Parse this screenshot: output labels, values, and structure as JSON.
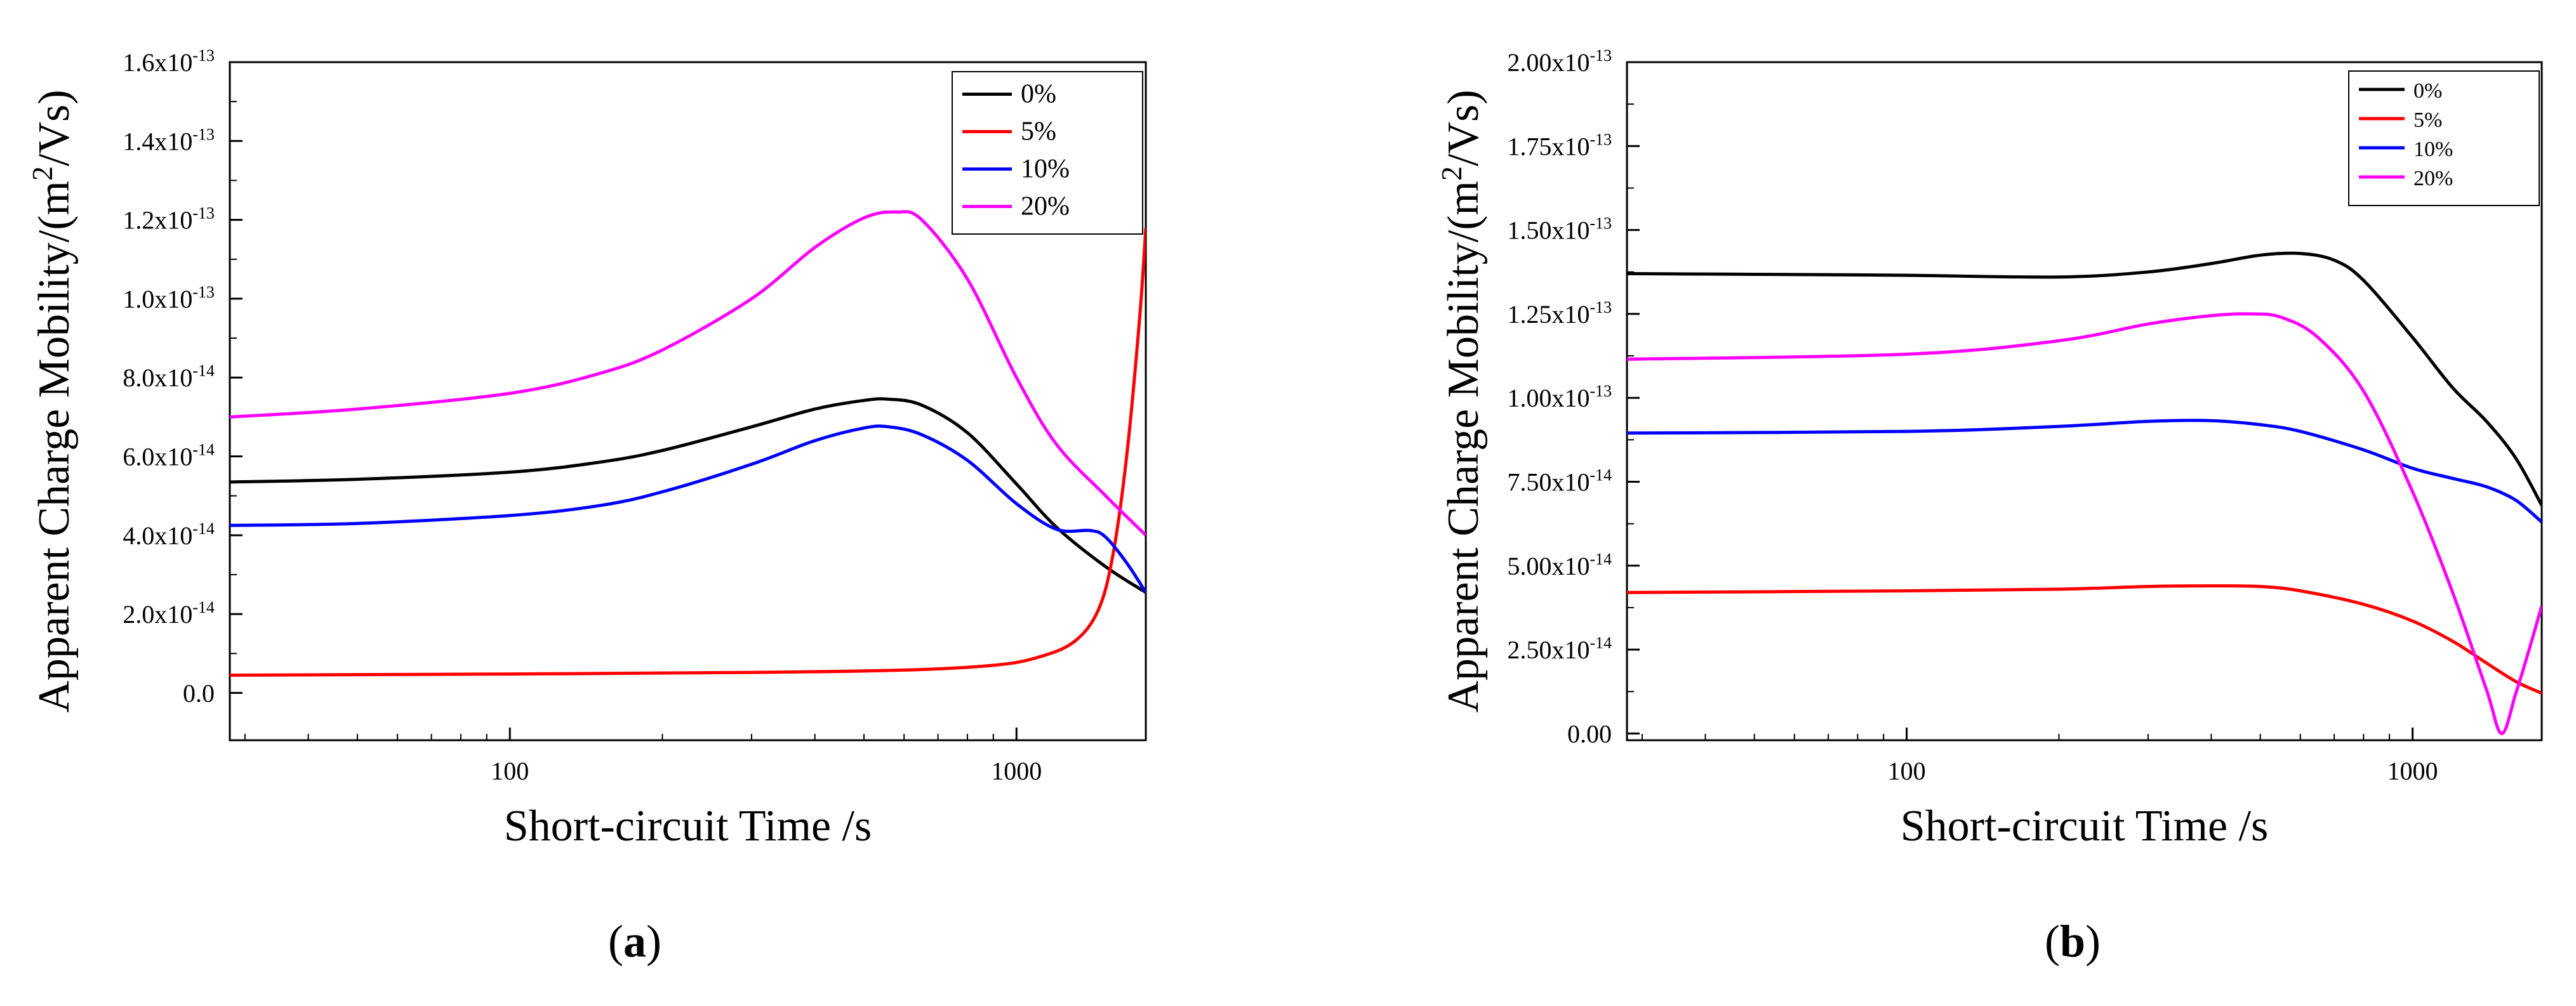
{
  "chart_data": [
    {
      "panel_id": "a",
      "type": "line",
      "xscale": "log",
      "xlim": [
        28,
        1800
      ],
      "ylim": [
        -1.2e-14,
        1.6e-13
      ],
      "xlabel": "Short-circuit Time /s",
      "ylabel": "Apparent Charge Mobility/(m2/Vs)",
      "ylabel_parts": {
        "main": "Apparent Charge Mobility/(m",
        "sup": "2",
        "tail": "/Vs)"
      },
      "panel_label": {
        "open": "(",
        "letter": "a",
        "close": ")"
      },
      "x_ticks": [
        {
          "value": 100,
          "label": "100"
        },
        {
          "value": 1000,
          "label": "1000"
        }
      ],
      "y_ticks": [
        {
          "value": 0,
          "mant": "0.0",
          "exp": ""
        },
        {
          "value": 2e-14,
          "mant": "2.0x10",
          "exp": "-14"
        },
        {
          "value": 4e-14,
          "mant": "4.0x10",
          "exp": "-14"
        },
        {
          "value": 6e-14,
          "mant": "6.0x10",
          "exp": "-14"
        },
        {
          "value": 8e-14,
          "mant": "8.0x10",
          "exp": "-14"
        },
        {
          "value": 1e-13,
          "mant": "1.0x10",
          "exp": "-13"
        },
        {
          "value": 1.2e-13,
          "mant": "1.2x10",
          "exp": "-13"
        },
        {
          "value": 1.4e-13,
          "mant": "1.4x10",
          "exp": "-13"
        },
        {
          "value": 1.6e-13,
          "mant": "1.6x10",
          "exp": "-13"
        }
      ],
      "legend_position": "top-right",
      "series": [
        {
          "name": "0%",
          "color": "#000000",
          "x": [
            28,
            50,
            100,
            150,
            200,
            300,
            400,
            500,
            560,
            650,
            800,
            1000,
            1200,
            1500,
            1800
          ],
          "y": [
            5.35e-14,
            5.42e-14,
            5.6e-14,
            5.85e-14,
            6.15e-14,
            6.75e-14,
            7.2e-14,
            7.42e-14,
            7.45e-14,
            7.3e-14,
            6.6e-14,
            5.3e-14,
            4.2e-14,
            3.2e-14,
            2.55e-14
          ]
        },
        {
          "name": "5%",
          "color": "#ff0000",
          "x": [
            28,
            100,
            300,
            600,
            900,
            1100,
            1300,
            1450,
            1550,
            1650,
            1750,
            1800
          ],
          "y": [
            4.5e-15,
            4.8e-15,
            5.2e-15,
            5.8e-15,
            7e-15,
            9e-15,
            1.3e-14,
            2.1e-14,
            3.5e-14,
            6e-14,
            9.5e-14,
            1.18e-13
          ]
        },
        {
          "name": "10%",
          "color": "#0000ff",
          "x": [
            28,
            50,
            100,
            150,
            200,
            300,
            400,
            500,
            560,
            650,
            800,
            1000,
            1200,
            1400,
            1500,
            1650,
            1800
          ],
          "y": [
            4.25e-14,
            4.3e-14,
            4.5e-14,
            4.75e-14,
            5.1e-14,
            5.8e-14,
            6.4e-14,
            6.72e-14,
            6.75e-14,
            6.55e-14,
            5.9e-14,
            4.8e-14,
            4.15e-14,
            4.12e-14,
            3.95e-14,
            3.3e-14,
            2.55e-14
          ]
        },
        {
          "name": "20%",
          "color": "#ff00ff",
          "x": [
            28,
            50,
            100,
            150,
            200,
            300,
            400,
            500,
            580,
            650,
            800,
            1000,
            1200,
            1500,
            1800
          ],
          "y": [
            7e-14,
            7.2e-14,
            7.6e-14,
            8.1e-14,
            8.7e-14,
            1e-13,
            1.13e-13,
            1.205e-13,
            1.22e-13,
            1.2e-13,
            1.05e-13,
            8e-14,
            6.3e-14,
            5e-14,
            4e-14
          ]
        }
      ]
    },
    {
      "panel_id": "b",
      "type": "line",
      "xscale": "log",
      "xlim": [
        28,
        1800
      ],
      "ylim": [
        -2e-15,
        2e-13
      ],
      "xlabel": "Short-circuit Time /s",
      "ylabel": "Apparent Charge Mobility/(m2/Vs)",
      "ylabel_parts": {
        "main": "Apparent Charge Mobility/(m",
        "sup": "2",
        "tail": "/Vs)"
      },
      "panel_label": {
        "open": "(",
        "letter": "b",
        "close": ")"
      },
      "x_ticks": [
        {
          "value": 100,
          "label": "100"
        },
        {
          "value": 1000,
          "label": "1000"
        }
      ],
      "y_ticks": [
        {
          "value": 0,
          "mant": "0.00",
          "exp": ""
        },
        {
          "value": 2.5e-14,
          "mant": "2.50x10",
          "exp": "-14"
        },
        {
          "value": 5e-14,
          "mant": "5.00x10",
          "exp": "-14"
        },
        {
          "value": 7.5e-14,
          "mant": "7.50x10",
          "exp": "-14"
        },
        {
          "value": 1e-13,
          "mant": "1.00x10",
          "exp": "-13"
        },
        {
          "value": 1.25e-13,
          "mant": "1.25x10",
          "exp": "-13"
        },
        {
          "value": 1.5e-13,
          "mant": "1.50x10",
          "exp": "-13"
        },
        {
          "value": 1.75e-13,
          "mant": "1.75x10",
          "exp": "-13"
        },
        {
          "value": 2e-13,
          "mant": "2.00x10",
          "exp": "-13"
        }
      ],
      "legend_position": "top-right",
      "series": [
        {
          "name": "0%",
          "color": "#000000",
          "x": [
            28,
            50,
            100,
            200,
            300,
            400,
            500,
            600,
            700,
            800,
            1000,
            1200,
            1400,
            1600,
            1800
          ],
          "y": [
            1.37e-13,
            1.368e-13,
            1.365e-13,
            1.36e-13,
            1.375e-13,
            1.4e-13,
            1.425e-13,
            1.43e-13,
            1.41e-13,
            1.35e-13,
            1.18e-13,
            1.03e-13,
            9.3e-14,
            8.2e-14,
            6.8e-14
          ]
        },
        {
          "name": "5%",
          "color": "#ff0000",
          "x": [
            28,
            100,
            200,
            300,
            400,
            500,
            600,
            800,
            1000,
            1200,
            1400,
            1600,
            1800
          ],
          "y": [
            4.2e-14,
            4.25e-14,
            4.3e-14,
            4.38e-14,
            4.4e-14,
            4.38e-14,
            4.25e-14,
            3.85e-14,
            3.35e-14,
            2.75e-14,
            2.1e-14,
            1.55e-14,
            1.2e-14
          ]
        },
        {
          "name": "10%",
          "color": "#0000ff",
          "x": [
            28,
            100,
            200,
            300,
            400,
            500,
            600,
            800,
            1000,
            1200,
            1400,
            1600,
            1800
          ],
          "y": [
            8.95e-14,
            9e-14,
            9.15e-14,
            9.3e-14,
            9.32e-14,
            9.2e-14,
            9e-14,
            8.45e-14,
            7.9e-14,
            7.6e-14,
            7.35e-14,
            6.95e-14,
            6.3e-14
          ]
        },
        {
          "name": "20%",
          "color": "#ff00ff",
          "x": [
            28,
            100,
            200,
            300,
            400,
            480,
            550,
            650,
            800,
            1000,
            1200,
            1400,
            1500,
            1600,
            1700,
            1800
          ],
          "y": [
            1.115e-13,
            1.13e-13,
            1.17e-13,
            1.22e-13,
            1.245e-13,
            1.25e-13,
            1.24e-13,
            1.18e-13,
            1.02e-13,
            7.2e-14,
            4.2e-14,
            1.3e-14,
            0,
            1.2e-14,
            2.5e-14,
            3.8e-14
          ]
        }
      ]
    }
  ]
}
